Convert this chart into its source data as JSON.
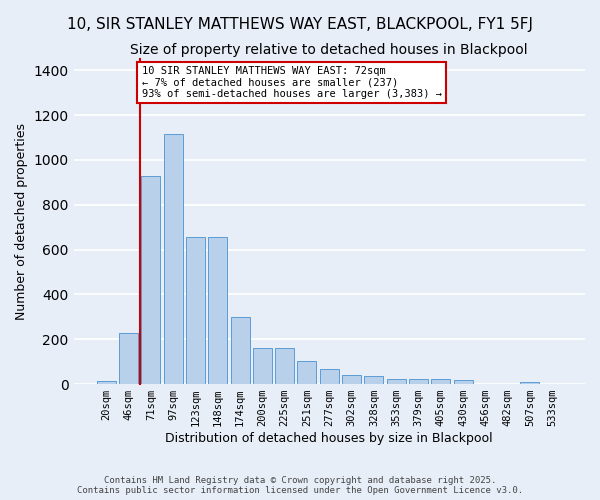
{
  "title": "10, SIR STANLEY MATTHEWS WAY EAST, BLACKPOOL, FY1 5FJ",
  "subtitle": "Size of property relative to detached houses in Blackpool",
  "xlabel": "Distribution of detached houses by size in Blackpool",
  "ylabel": "Number of detached properties",
  "categories": [
    "20sqm",
    "46sqm",
    "71sqm",
    "97sqm",
    "123sqm",
    "148sqm",
    "174sqm",
    "200sqm",
    "225sqm",
    "251sqm",
    "277sqm",
    "302sqm",
    "328sqm",
    "353sqm",
    "379sqm",
    "405sqm",
    "430sqm",
    "456sqm",
    "482sqm",
    "507sqm",
    "533sqm"
  ],
  "values": [
    15,
    230,
    930,
    1115,
    655,
    655,
    300,
    162,
    160,
    105,
    68,
    40,
    34,
    22,
    22,
    22,
    18,
    0,
    0,
    8,
    0
  ],
  "bar_color": "#b8d0ea",
  "bar_edge_color": "#5b9bd5",
  "vline_color": "#cc0000",
  "vline_x_index": 2,
  "annotation_line1": "10 SIR STANLEY MATTHEWS WAY EAST: 72sqm",
  "annotation_line2": "← 7% of detached houses are smaller (237)",
  "annotation_line3": "93% of semi-detached houses are larger (3,383) →",
  "annotation_box_facecolor": "#ffffff",
  "annotation_box_edgecolor": "#cc0000",
  "bg_color": "#e8eef8",
  "grid_color": "#ffffff",
  "footer_line1": "Contains HM Land Registry data © Crown copyright and database right 2025.",
  "footer_line2": "Contains public sector information licensed under the Open Government Licence v3.0.",
  "ylim_max": 1450,
  "title_fontsize": 11,
  "subtitle_fontsize": 10,
  "xlabel_fontsize": 9,
  "ylabel_fontsize": 9,
  "tick_fontsize": 7.5,
  "annotation_fontsize": 7.5,
  "footer_fontsize": 6.5
}
